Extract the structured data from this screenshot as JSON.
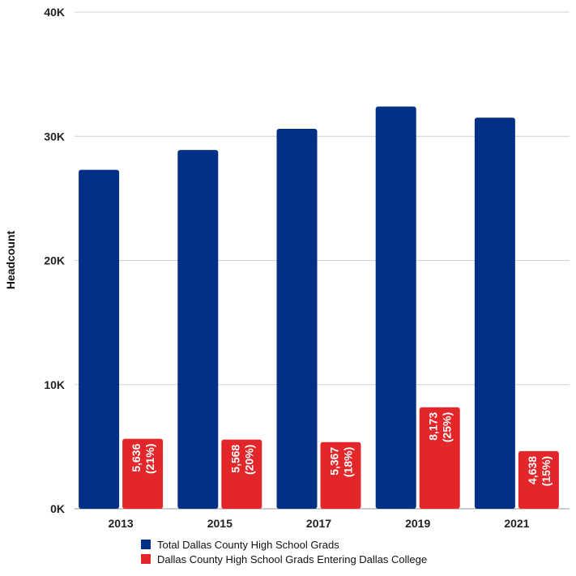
{
  "chart_data": {
    "type": "bar",
    "title": "",
    "xlabel": "",
    "ylabel": "Headcount",
    "ylim": [
      0,
      40000
    ],
    "yticks": [
      0,
      10000,
      20000,
      30000,
      40000
    ],
    "ytick_labels": [
      "0K",
      "10K",
      "20K",
      "30K",
      "40K"
    ],
    "categories": [
      "2013",
      "2015",
      "2017",
      "2019",
      "2021"
    ],
    "grid": true,
    "legend_position": "bottom-center",
    "series": [
      {
        "name": "Total Dallas County High School Grads",
        "color": "#033087",
        "values": [
          27300,
          28900,
          30600,
          32400,
          31500
        ]
      },
      {
        "name": "Dallas County High School Grads Entering Dallas College",
        "color": "#e3262a",
        "values": [
          5636,
          5568,
          5367,
          8173,
          4638
        ],
        "data_labels": [
          [
            "5,636",
            "(21%)"
          ],
          [
            "5,568",
            "(20%)"
          ],
          [
            "5,367",
            "(18%)"
          ],
          [
            "8,173",
            "(25%)"
          ],
          [
            "4,638",
            "(15%)"
          ]
        ]
      }
    ]
  }
}
